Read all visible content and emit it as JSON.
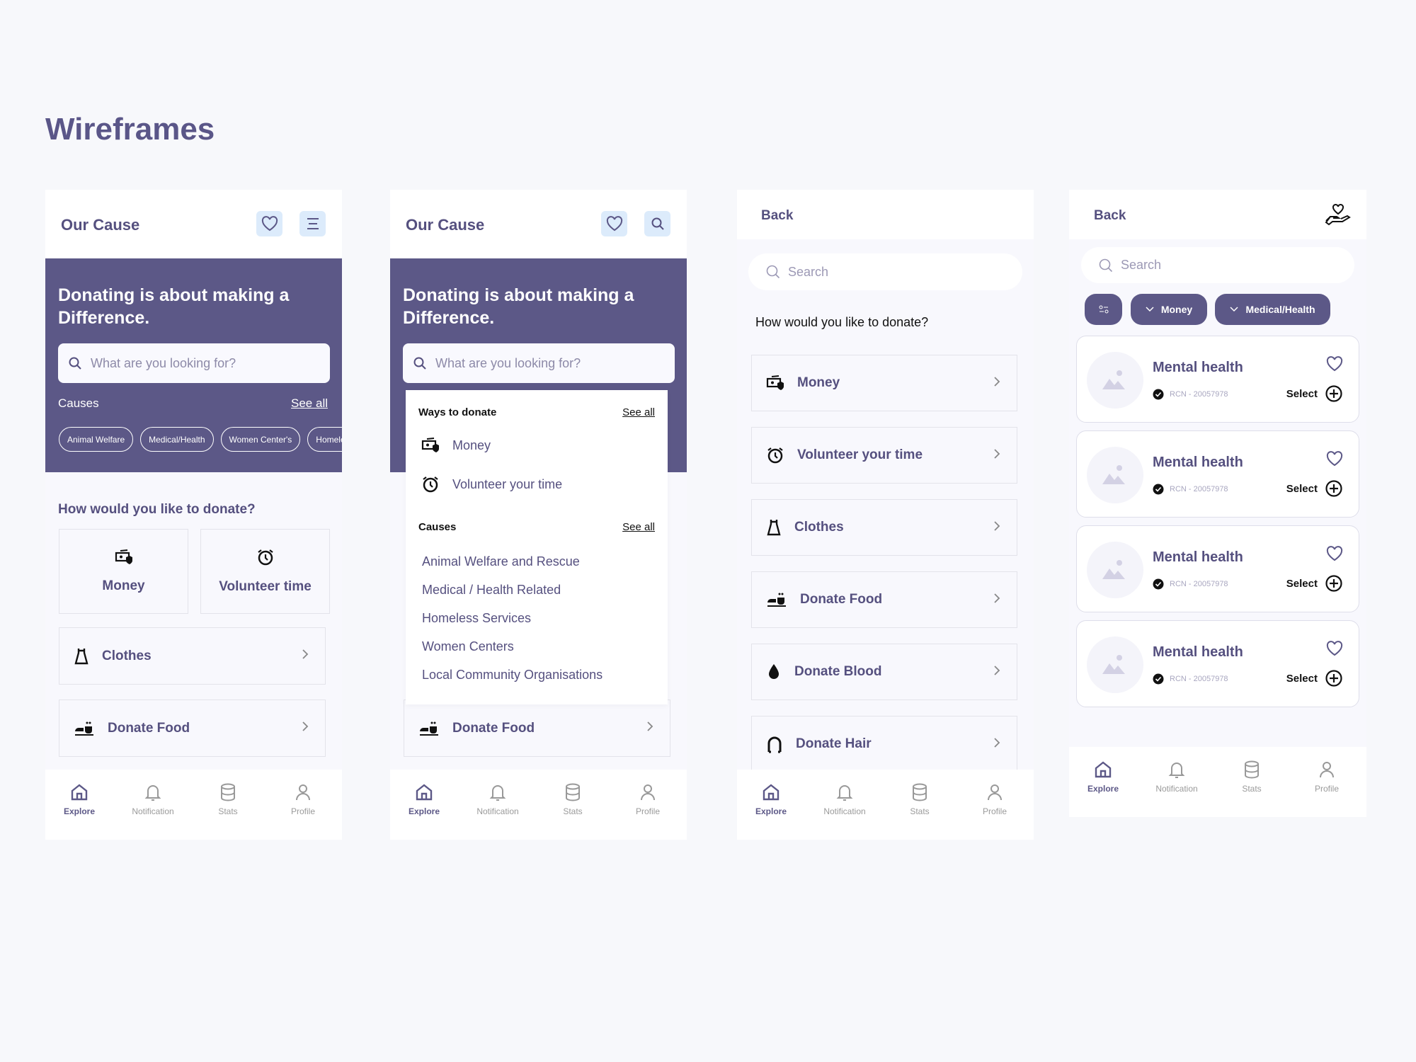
{
  "page_title": "Wireframes",
  "colors": {
    "primary": "#5c5887",
    "text": "#55507f",
    "light_button": "#dcebfb",
    "background": "#f7f8fb"
  },
  "nav": [
    {
      "label": "Explore",
      "icon": "home-icon",
      "active": true
    },
    {
      "label": "Notification",
      "icon": "bell-icon"
    },
    {
      "label": "Stats",
      "icon": "database-icon"
    },
    {
      "label": "Profile",
      "icon": "user-icon"
    }
  ],
  "screen1": {
    "header_title": "Our Cause",
    "headline": "Donating is about making a Difference.",
    "search_placeholder": "What are you looking for?",
    "causes_label": "Causes",
    "see_all": "See all",
    "chips": [
      "Animal Welfare",
      "Medical/Health",
      "Women Center's",
      "Homeless"
    ],
    "question": "How would you like to donate?",
    "cards": [
      {
        "label": "Money",
        "icon": "money-icon"
      },
      {
        "label": "Volunteer time",
        "icon": "alarm-clock-icon"
      }
    ],
    "rows": [
      {
        "label": "Clothes",
        "icon": "dress-icon"
      },
      {
        "label": "Donate Food",
        "icon": "food-icon"
      }
    ]
  },
  "screen2": {
    "header_title": "Our Cause",
    "headline": "Donating is about making a Difference.",
    "search_placeholder": "What are you looking for?",
    "dropdown": {
      "ways_label": "Ways to donate",
      "ways_see_all": "See all",
      "ways": [
        {
          "label": "Money",
          "icon": "money-icon"
        },
        {
          "label": "Volunteer your time",
          "icon": "alarm-clock-icon"
        }
      ],
      "causes_label": "Causes",
      "causes_see_all": "See all",
      "causes": [
        "Animal Welfare and Rescue",
        "Medical / Health Related",
        "Homeless Services",
        "Women Centers",
        "Local Community Organisations"
      ]
    },
    "rows": [
      {
        "label": "Donate Food",
        "icon": "food-icon"
      }
    ]
  },
  "screen3": {
    "back": "Back",
    "search_placeholder": "Search",
    "question": "How would you like to donate?",
    "rows": [
      {
        "label": "Money",
        "icon": "money-icon"
      },
      {
        "label": "Volunteer your time",
        "icon": "alarm-clock-icon"
      },
      {
        "label": "Clothes",
        "icon": "dress-icon"
      },
      {
        "label": "Donate Food",
        "icon": "food-icon"
      },
      {
        "label": "Donate Blood",
        "icon": "blood-drop-icon"
      },
      {
        "label": "Donate Hair",
        "icon": "hair-icon"
      }
    ]
  },
  "screen4": {
    "back": "Back",
    "search_placeholder": "Search",
    "filters": [
      "Money",
      "Medical/Health"
    ],
    "orgs": [
      {
        "name": "Mental health",
        "rcn": "RCN - 20057978",
        "action": "Select"
      },
      {
        "name": "Mental health",
        "rcn": "RCN - 20057978",
        "action": "Select"
      },
      {
        "name": "Mental health",
        "rcn": "RCN - 20057978",
        "action": "Select"
      },
      {
        "name": "Mental health",
        "rcn": "RCN - 20057978",
        "action": "Select"
      }
    ]
  }
}
